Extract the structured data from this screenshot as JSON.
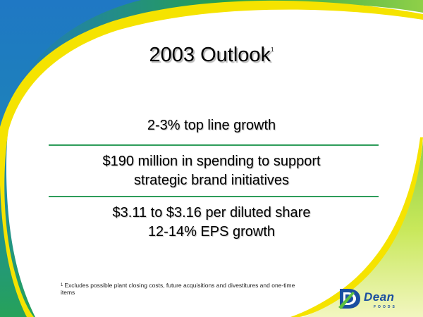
{
  "title": {
    "text": "2003 Outlook",
    "footnote_mark": "1"
  },
  "bullets": [
    {
      "lines": [
        "2-3% top line growth"
      ]
    },
    {
      "lines": [
        "$190 million in spending to support",
        "strategic brand initiatives"
      ]
    },
    {
      "lines": [
        "$3.11 to $3.16 per diluted share",
        "12-14% EPS growth"
      ]
    }
  ],
  "footnote": {
    "mark": "1",
    "text": "Excludes possible plant closing costs, future acquisitions and divestitures and one-time items"
  },
  "logo": {
    "name": "Dean",
    "sub": "FOODS"
  },
  "colors": {
    "blue": "#1f78c4",
    "green": "#5bbf3f",
    "yellow": "#f5e300",
    "rule": "#2e9c5a",
    "logo": "#1b4fa0"
  }
}
